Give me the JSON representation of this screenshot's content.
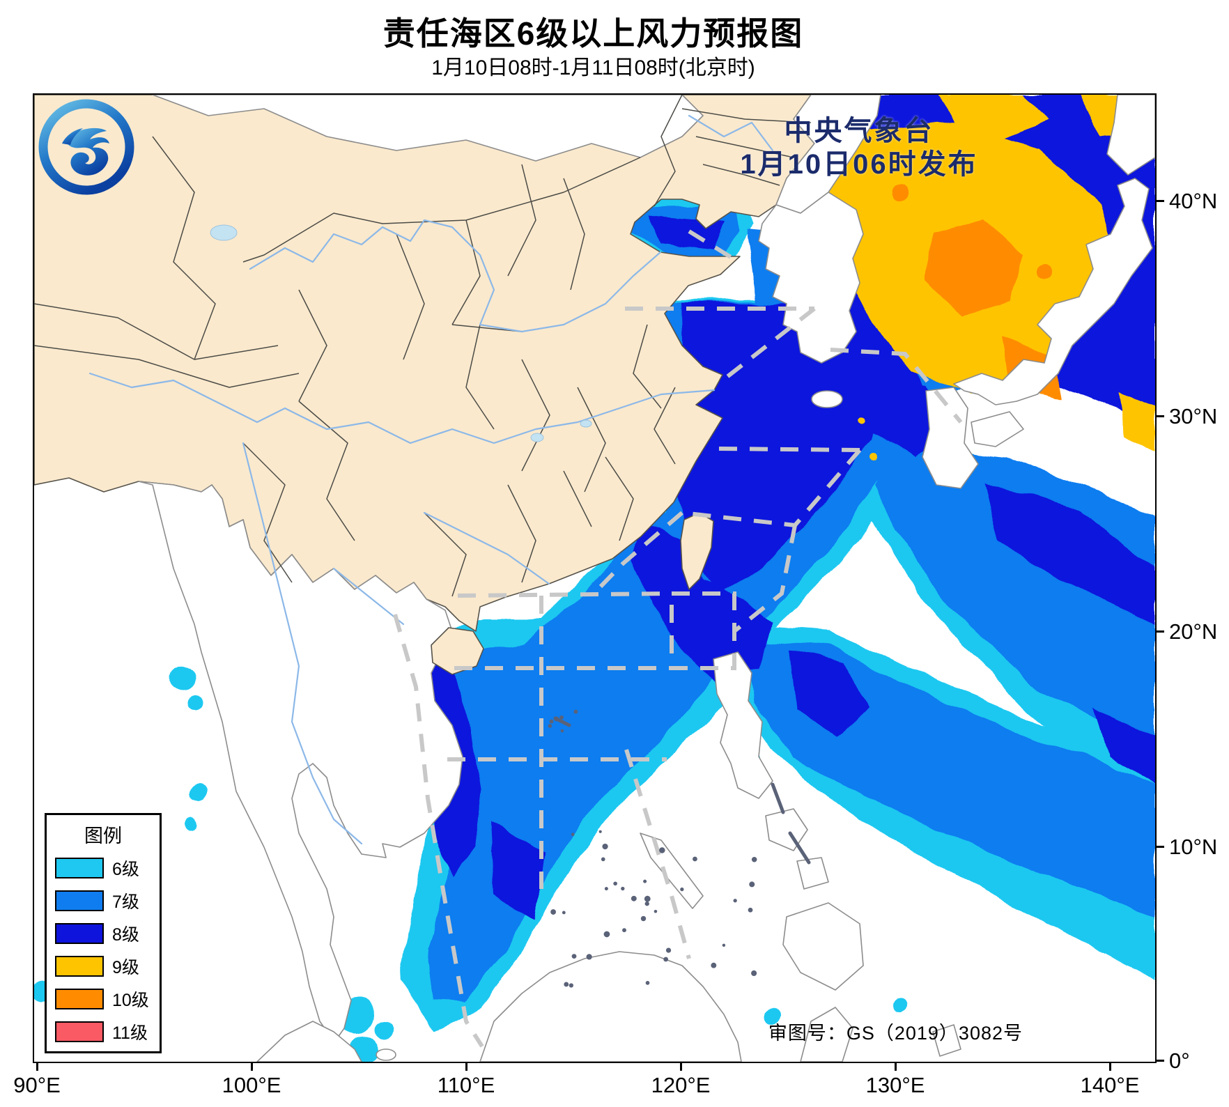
{
  "header": {
    "title": "责任海区6级以上风力预报图",
    "subtitle": "1月10日08时-1月11日08时(北京时)"
  },
  "watermark": {
    "line1": "中央气象台",
    "line2": "1月10日06时发布"
  },
  "legend": {
    "title": "图例",
    "items": [
      {
        "label": "6级",
        "color": "#1ec8f0"
      },
      {
        "label": "7级",
        "color": "#0f7df0"
      },
      {
        "label": "8级",
        "color": "#0f14dc"
      },
      {
        "label": "9级",
        "color": "#ffc400"
      },
      {
        "label": "10级",
        "color": "#ff8c00"
      },
      {
        "label": "11级",
        "color": "#fa5a64"
      }
    ]
  },
  "axes": {
    "x_labels": [
      "90°E",
      "100°E",
      "110°E",
      "120°E",
      "130°E",
      "140°E"
    ],
    "y_labels": [
      "40°N",
      "30°N",
      "20°N",
      "10°N",
      "0°"
    ]
  },
  "footer": {
    "survey_number": "审图号：GS（2019）3082号"
  },
  "logo": {
    "name": "cma-logo"
  },
  "map_colors": {
    "land": "#fae9cd",
    "sea": "#ffffff",
    "foreign_border": "#8c8c8c",
    "province_border": "#4b4b46",
    "river": "#8cb8e8",
    "zone_line": "#c8c8c8",
    "watermark_text": "#1b2b6b"
  }
}
